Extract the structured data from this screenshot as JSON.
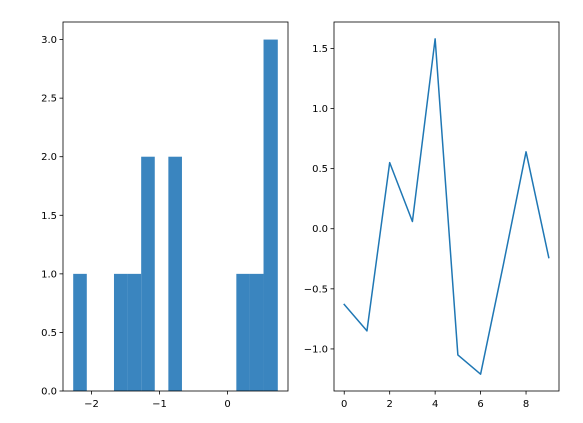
{
  "chart_data": [
    {
      "type": "bar",
      "style": "histogram",
      "bins": [
        {
          "x0": -2.27,
          "x1": -2.07,
          "count": 1
        },
        {
          "x0": -1.67,
          "x1": -1.47,
          "count": 1
        },
        {
          "x0": -1.47,
          "x1": -1.27,
          "count": 1
        },
        {
          "x0": -1.27,
          "x1": -1.07,
          "count": 2
        },
        {
          "x0": -0.87,
          "x1": -0.67,
          "count": 2
        },
        {
          "x0": 0.13,
          "x1": 0.33,
          "count": 1
        },
        {
          "x0": 0.33,
          "x1": 0.53,
          "count": 1
        },
        {
          "x0": 0.53,
          "x1": 0.74,
          "count": 3
        }
      ],
      "xlim": [
        -2.42,
        0.89
      ],
      "ylim": [
        0,
        3.15
      ],
      "xticks": [
        {
          "value": -2,
          "label": "−2"
        },
        {
          "value": -1,
          "label": "−1"
        },
        {
          "value": 0,
          "label": "0"
        }
      ],
      "yticks": [
        {
          "value": 0,
          "label": "0.0"
        },
        {
          "value": 0.5,
          "label": "0.5"
        },
        {
          "value": 1,
          "label": "1.0"
        },
        {
          "value": 1.5,
          "label": "1.5"
        },
        {
          "value": 2,
          "label": "2.0"
        },
        {
          "value": 2.5,
          "label": "2.5"
        },
        {
          "value": 3,
          "label": "3.0"
        }
      ],
      "color": "#3a85bf",
      "grid": false
    },
    {
      "type": "line",
      "x": [
        0,
        1,
        2,
        3,
        4,
        5,
        6,
        7,
        8,
        9
      ],
      "y": [
        -0.63,
        -0.85,
        0.55,
        0.06,
        1.58,
        -1.05,
        -1.21,
        -0.3,
        0.64,
        -0.24
      ],
      "xlim": [
        -0.45,
        9.45
      ],
      "ylim": [
        -1.35,
        1.72
      ],
      "xticks": [
        {
          "value": 0,
          "label": "0"
        },
        {
          "value": 2,
          "label": "2"
        },
        {
          "value": 4,
          "label": "4"
        },
        {
          "value": 6,
          "label": "6"
        },
        {
          "value": 8,
          "label": "8"
        }
      ],
      "yticks": [
        {
          "value": -1,
          "label": "−1.0"
        },
        {
          "value": -0.5,
          "label": "−0.5"
        },
        {
          "value": 0,
          "label": "0.0"
        },
        {
          "value": 0.5,
          "label": "0.5"
        },
        {
          "value": 1,
          "label": "1.0"
        },
        {
          "value": 1.5,
          "label": "1.5"
        }
      ],
      "color": "#1f77b4",
      "grid": false
    }
  ]
}
